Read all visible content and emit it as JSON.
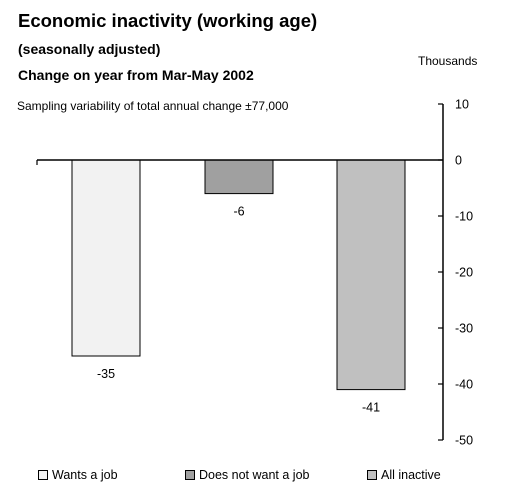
{
  "chart_data": {
    "type": "bar",
    "title": "Economic inactivity (working age)",
    "subtitle_1": "(seasonally adjusted)",
    "subtitle_2": "Change on year from Mar-May 2002",
    "units_label": "Thousands",
    "note": "Sampling variability of total annual change ±77,000",
    "categories": [
      "Wants a job",
      "Does not want a job",
      "All inactive"
    ],
    "values": [
      -35,
      -6,
      -41
    ],
    "data_labels": [
      "-35",
      "-6",
      "-41"
    ],
    "colors": [
      "#f2f2f2",
      "#a0a0a0",
      "#c0c0c0"
    ],
    "ylim": [
      -50,
      10
    ],
    "yticks": [
      10,
      0,
      -10,
      -20,
      -30,
      -40,
      -50
    ],
    "axis_side": "right",
    "grid": false,
    "legend_position": "bottom"
  }
}
